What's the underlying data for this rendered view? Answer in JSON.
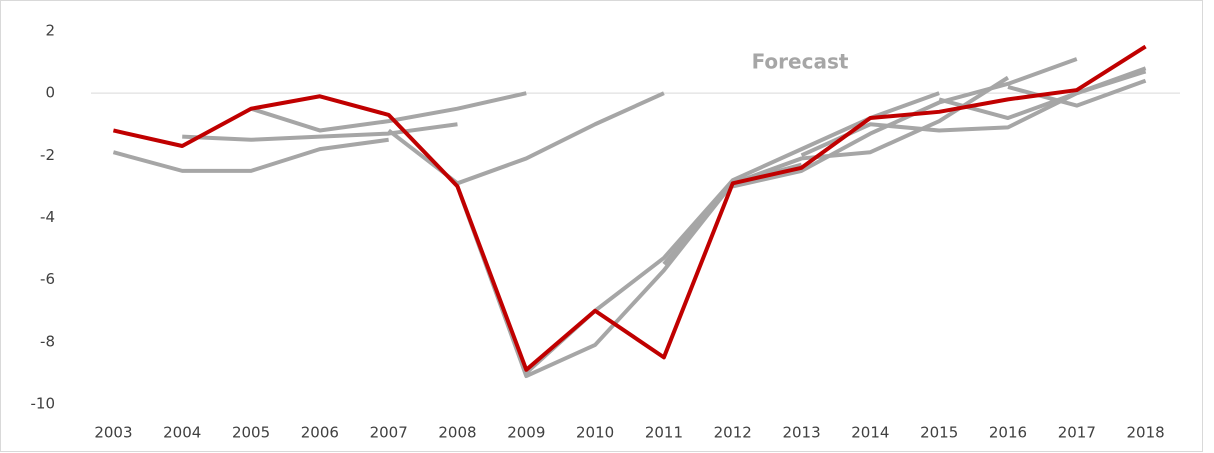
{
  "chart_data": {
    "type": "line",
    "annotations": [
      "Forecast"
    ],
    "categories": [
      "2003",
      "2004",
      "2005",
      "2006",
      "2007",
      "2008",
      "2009",
      "2010",
      "2011",
      "2012",
      "2013",
      "2014",
      "2015",
      "2016",
      "2017",
      "2018"
    ],
    "ylim": [
      -10,
      2
    ],
    "yticks": [
      -10,
      -8,
      -6,
      -4,
      -2,
      0,
      2
    ],
    "grid": false,
    "zero_line": true,
    "series": [
      {
        "color": "#a6a6a6",
        "values": [
          -1.9,
          -2.5,
          -2.5,
          -1.8,
          -1.5,
          null,
          null,
          null,
          null,
          null,
          null,
          null,
          null,
          null,
          null,
          null
        ]
      },
      {
        "color": "#a6a6a6",
        "values": [
          null,
          -1.4,
          -1.5,
          -1.4,
          -1.3,
          -1.0,
          null,
          null,
          null,
          null,
          null,
          null,
          null,
          null,
          null,
          null
        ]
      },
      {
        "color": "#a6a6a6",
        "values": [
          null,
          null,
          -0.5,
          -1.2,
          -0.9,
          -0.5,
          0.0,
          null,
          null,
          null,
          null,
          null,
          null,
          null,
          null,
          null
        ]
      },
      {
        "color": "#a6a6a6",
        "values": [
          null,
          null,
          null,
          null,
          -1.2,
          -2.9,
          -2.1,
          -1.0,
          0.0,
          null,
          null,
          null,
          null,
          null,
          null,
          null
        ]
      },
      {
        "color": "#a6a6a6",
        "values": [
          null,
          null,
          null,
          null,
          null,
          -3.0,
          -9.1,
          -8.1,
          -5.7,
          -2.9,
          -2.3,
          null,
          null,
          null,
          null,
          null
        ]
      },
      {
        "color": "#a6a6a6",
        "values": [
          null,
          null,
          null,
          null,
          null,
          null,
          -9.0,
          -7.0,
          -5.3,
          -2.8,
          -1.8,
          -0.8,
          0.0,
          null,
          null,
          null
        ]
      },
      {
        "color": "#a6a6a6",
        "values": [
          null,
          null,
          null,
          null,
          null,
          null,
          null,
          null,
          -5.5,
          -2.9,
          -2.1,
          -1.9,
          -0.9,
          0.5,
          null,
          null
        ]
      },
      {
        "color": "#a6a6a6",
        "values": [
          null,
          null,
          null,
          null,
          null,
          null,
          null,
          null,
          null,
          -3.0,
          -2.5,
          -1.3,
          -0.3,
          0.3,
          1.1,
          null
        ]
      },
      {
        "color": "#a6a6a6",
        "values": [
          null,
          null,
          null,
          null,
          null,
          null,
          null,
          null,
          null,
          null,
          -2.0,
          -1.0,
          -1.2,
          -1.1,
          0.0,
          0.7
        ]
      },
      {
        "color": "#a6a6a6",
        "values": [
          null,
          null,
          null,
          null,
          null,
          null,
          null,
          null,
          null,
          null,
          null,
          null,
          -0.2,
          -0.8,
          0.0,
          0.8
        ]
      },
      {
        "color": "#a6a6a6",
        "values": [
          null,
          null,
          null,
          null,
          null,
          null,
          null,
          null,
          null,
          null,
          null,
          null,
          null,
          0.2,
          -0.4,
          0.4
        ]
      },
      {
        "color": "#c00000",
        "values": [
          -1.2,
          -1.7,
          -0.5,
          -0.1,
          -0.7,
          -3.0,
          -8.9,
          -7.0,
          -8.5,
          -2.9,
          -2.4,
          -0.8,
          -0.6,
          -0.2,
          0.1,
          1.5
        ]
      }
    ]
  }
}
